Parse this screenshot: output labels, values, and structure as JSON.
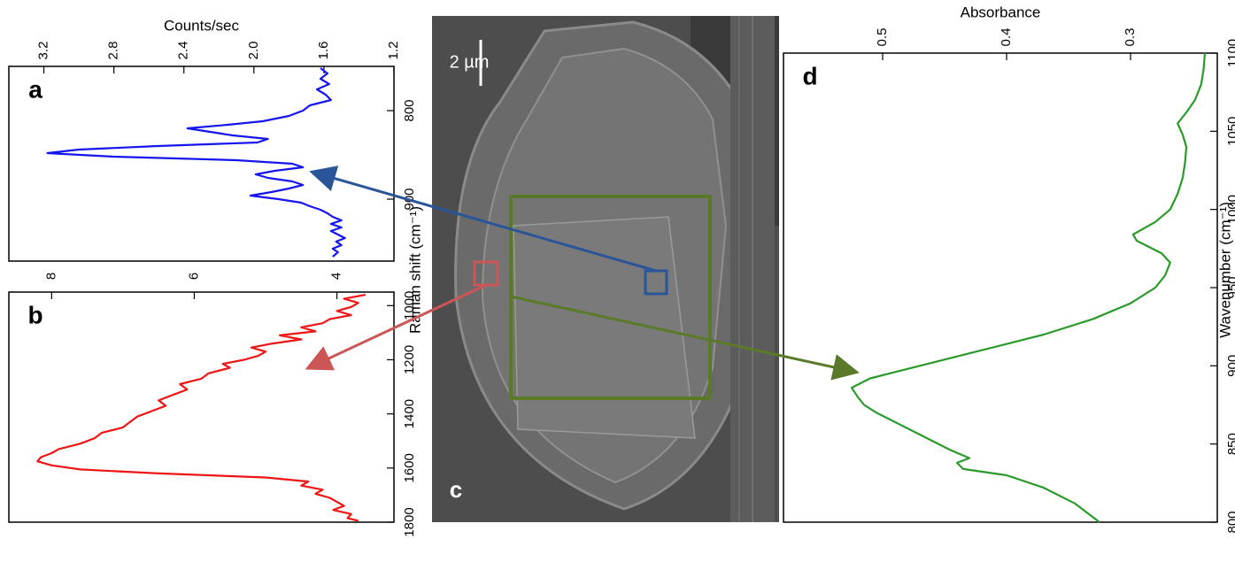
{
  "colors": {
    "panel_a_line": "#1515ee",
    "panel_b_line": "#ee1515",
    "panel_d_line": "#2a9a2a",
    "box_raman_red": "#cc5555",
    "box_raman_blue": "#2a5599",
    "box_ir_green": "#5a7a2a",
    "sem_background": "#4d4d4d"
  },
  "panel_c": {
    "label": "c",
    "scale_bar_label": "2 µm"
  },
  "chart_data": [
    {
      "panel": "a",
      "type": "line",
      "label": "a",
      "xlabel": "Raman shift (cm⁻¹)",
      "ylabel": "Counts/sec",
      "xlim": [
        750,
        970
      ],
      "ylim": [
        1.2,
        3.4
      ],
      "x_ticks": [
        800,
        900
      ],
      "y_ticks": [
        1.2,
        1.6,
        2.0,
        2.4,
        2.8,
        3.2
      ],
      "series": [
        {
          "color": "#1515ee",
          "x": [
            752,
            758,
            764,
            770,
            776,
            782,
            788,
            794,
            800,
            806,
            812,
            816,
            820,
            824,
            828,
            832,
            836,
            840,
            844,
            848,
            852,
            856,
            860,
            864,
            868,
            872,
            876,
            880,
            884,
            888,
            892,
            896,
            900,
            904,
            908,
            912,
            916,
            920,
            924,
            928,
            932,
            936,
            940,
            944,
            948,
            952,
            956,
            960,
            965
          ],
          "y": [
            1.62,
            1.58,
            1.62,
            1.57,
            1.64,
            1.59,
            1.56,
            1.68,
            1.72,
            1.8,
            1.95,
            2.15,
            2.38,
            2.25,
            2.12,
            1.92,
            1.98,
            2.55,
            3.0,
            3.18,
            2.8,
            2.1,
            1.78,
            1.72,
            1.88,
            1.99,
            1.92,
            1.78,
            1.72,
            1.8,
            1.9,
            2.02,
            1.86,
            1.73,
            1.68,
            1.62,
            1.58,
            1.55,
            1.5,
            1.56,
            1.5,
            1.56,
            1.52,
            1.48,
            1.53,
            1.5,
            1.55,
            1.52,
            1.55
          ]
        }
      ]
    },
    {
      "panel": "b",
      "type": "line",
      "label": "b",
      "xlabel": "Raman shift (cm⁻¹)",
      "ylabel": "",
      "xlim": [
        950,
        1800
      ],
      "ylim": [
        3.2,
        8.6
      ],
      "x_ticks": [
        1000,
        1200,
        1400,
        1600,
        1800
      ],
      "y_ticks": [
        4,
        6,
        8
      ],
      "series": [
        {
          "color": "#ee1515",
          "x": [
            960,
            975,
            990,
            1005,
            1020,
            1035,
            1050,
            1065,
            1080,
            1095,
            1110,
            1125,
            1140,
            1155,
            1170,
            1185,
            1200,
            1215,
            1230,
            1250,
            1270,
            1290,
            1310,
            1330,
            1350,
            1370,
            1390,
            1410,
            1430,
            1450,
            1470,
            1490,
            1510,
            1530,
            1545,
            1560,
            1575,
            1590,
            1605,
            1620,
            1635,
            1650,
            1665,
            1680,
            1695,
            1710,
            1725,
            1740,
            1755,
            1770,
            1785,
            1795
          ],
          "y": [
            3.6,
            3.9,
            3.7,
            3.8,
            4.0,
            3.8,
            4.1,
            4.2,
            4.5,
            4.3,
            4.8,
            4.5,
            4.9,
            5.2,
            5.0,
            5.1,
            5.3,
            5.6,
            5.5,
            5.8,
            5.9,
            6.2,
            6.1,
            6.3,
            6.5,
            6.4,
            6.6,
            6.8,
            6.9,
            7.0,
            7.3,
            7.4,
            7.6,
            7.9,
            8.0,
            8.15,
            8.2,
            8.0,
            7.6,
            6.5,
            5.0,
            4.4,
            4.5,
            4.2,
            4.3,
            4.1,
            4.0,
            3.9,
            4.05,
            3.8,
            3.85,
            3.7
          ]
        }
      ]
    },
    {
      "panel": "d",
      "type": "line",
      "label": "d",
      "xlabel": "Wavenumber (cm⁻¹)",
      "ylabel": "Absorbance",
      "xlim": [
        1100,
        800
      ],
      "ylim": [
        0.23,
        0.58
      ],
      "x_ticks": [
        1100,
        1050,
        1000,
        950,
        900,
        850,
        800
      ],
      "y_ticks": [
        0.3,
        0.4,
        0.5
      ],
      "series": [
        {
          "color": "#2a9a2a",
          "x": [
            1100,
            1090,
            1080,
            1070,
            1062,
            1055,
            1048,
            1040,
            1030,
            1020,
            1010,
            1000,
            992,
            984,
            980,
            976,
            972,
            966,
            958,
            950,
            940,
            930,
            920,
            910,
            900,
            892,
            886,
            880,
            875,
            870,
            864,
            858,
            852,
            846,
            841,
            838,
            834,
            830,
            822,
            812,
            800
          ],
          "y": [
            0.24,
            0.241,
            0.243,
            0.248,
            0.255,
            0.262,
            0.258,
            0.255,
            0.256,
            0.258,
            0.262,
            0.268,
            0.28,
            0.298,
            0.295,
            0.285,
            0.275,
            0.268,
            0.272,
            0.28,
            0.3,
            0.33,
            0.37,
            0.42,
            0.47,
            0.51,
            0.525,
            0.52,
            0.515,
            0.505,
            0.49,
            0.475,
            0.46,
            0.445,
            0.43,
            0.44,
            0.435,
            0.4,
            0.37,
            0.345,
            0.325
          ]
        }
      ]
    }
  ]
}
